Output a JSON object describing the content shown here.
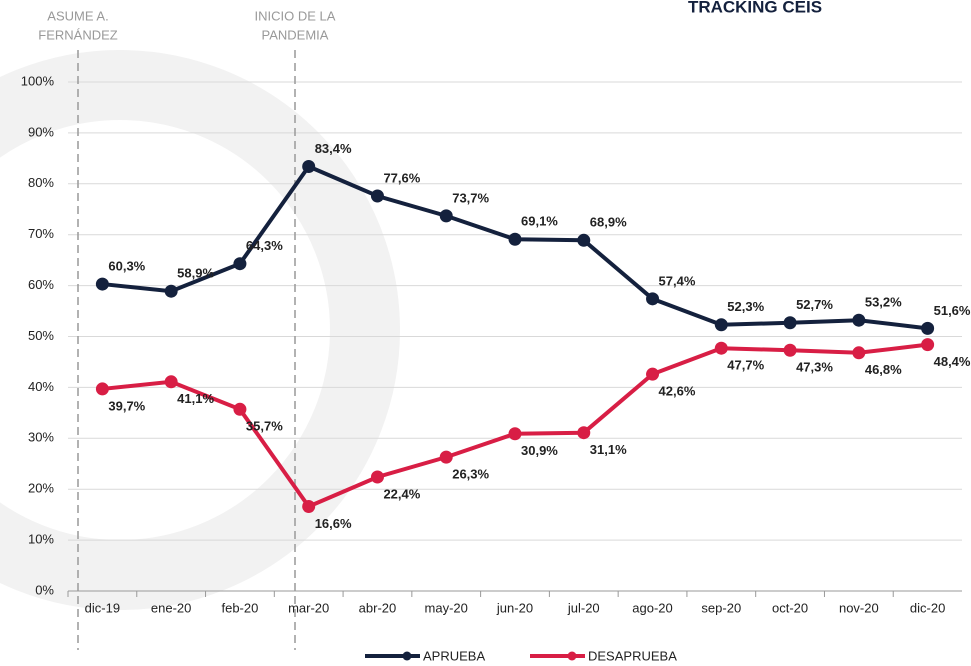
{
  "chart_data": {
    "type": "line",
    "title": "TRACKING CEIS",
    "categories": [
      "dic-19",
      "ene-20",
      "feb-20",
      "mar-20",
      "abr-20",
      "may-20",
      "jun-20",
      "jul-20",
      "ago-20",
      "sep-20",
      "oct-20",
      "nov-20",
      "dic-20"
    ],
    "series": [
      {
        "name": "APRUEBA",
        "color": "#14213d",
        "values": [
          60.3,
          58.9,
          64.3,
          83.4,
          77.6,
          73.7,
          69.1,
          68.9,
          57.4,
          52.3,
          52.7,
          53.2,
          51.6
        ],
        "value_labels": [
          "60,3%",
          "58,9%",
          "64,3%",
          "83,4%",
          "77,6%",
          "73,7%",
          "69,1%",
          "68,9%",
          "57,4%",
          "52,3%",
          "52,7%",
          "53,2%",
          "51,6%"
        ]
      },
      {
        "name": "DESAPRUEBA",
        "color": "#d81e45",
        "values": [
          39.7,
          41.1,
          35.7,
          16.6,
          22.4,
          26.3,
          30.9,
          31.1,
          42.6,
          47.7,
          47.3,
          46.8,
          48.4
        ],
        "value_labels": [
          "39,7%",
          "41,1%",
          "35,7%",
          "16,6%",
          "22,4%",
          "26,3%",
          "30,9%",
          "31,1%",
          "42,6%",
          "47,7%",
          "47,3%",
          "46,8%",
          "48,4%"
        ]
      }
    ],
    "ylim": [
      0,
      100
    ],
    "yticks": [
      {
        "value": 0,
        "label": "0%"
      },
      {
        "value": 10,
        "label": "10%"
      },
      {
        "value": 20,
        "label": "20%"
      },
      {
        "value": 30,
        "label": "30%"
      },
      {
        "value": 40,
        "label": "40%"
      },
      {
        "value": 50,
        "label": "50%"
      },
      {
        "value": 60,
        "label": "60%"
      },
      {
        "value": 70,
        "label": "70%"
      },
      {
        "value": 80,
        "label": "80%"
      },
      {
        "value": 90,
        "label": "90%"
      },
      {
        "value": 100,
        "label": "100%"
      }
    ],
    "grid": true,
    "legend": "bottom",
    "annotations": [
      {
        "lines": [
          "ASUME A.",
          "FERNÁNDEZ"
        ]
      },
      {
        "lines": [
          "INICIO DE LA",
          "PANDEMIA"
        ]
      }
    ]
  }
}
